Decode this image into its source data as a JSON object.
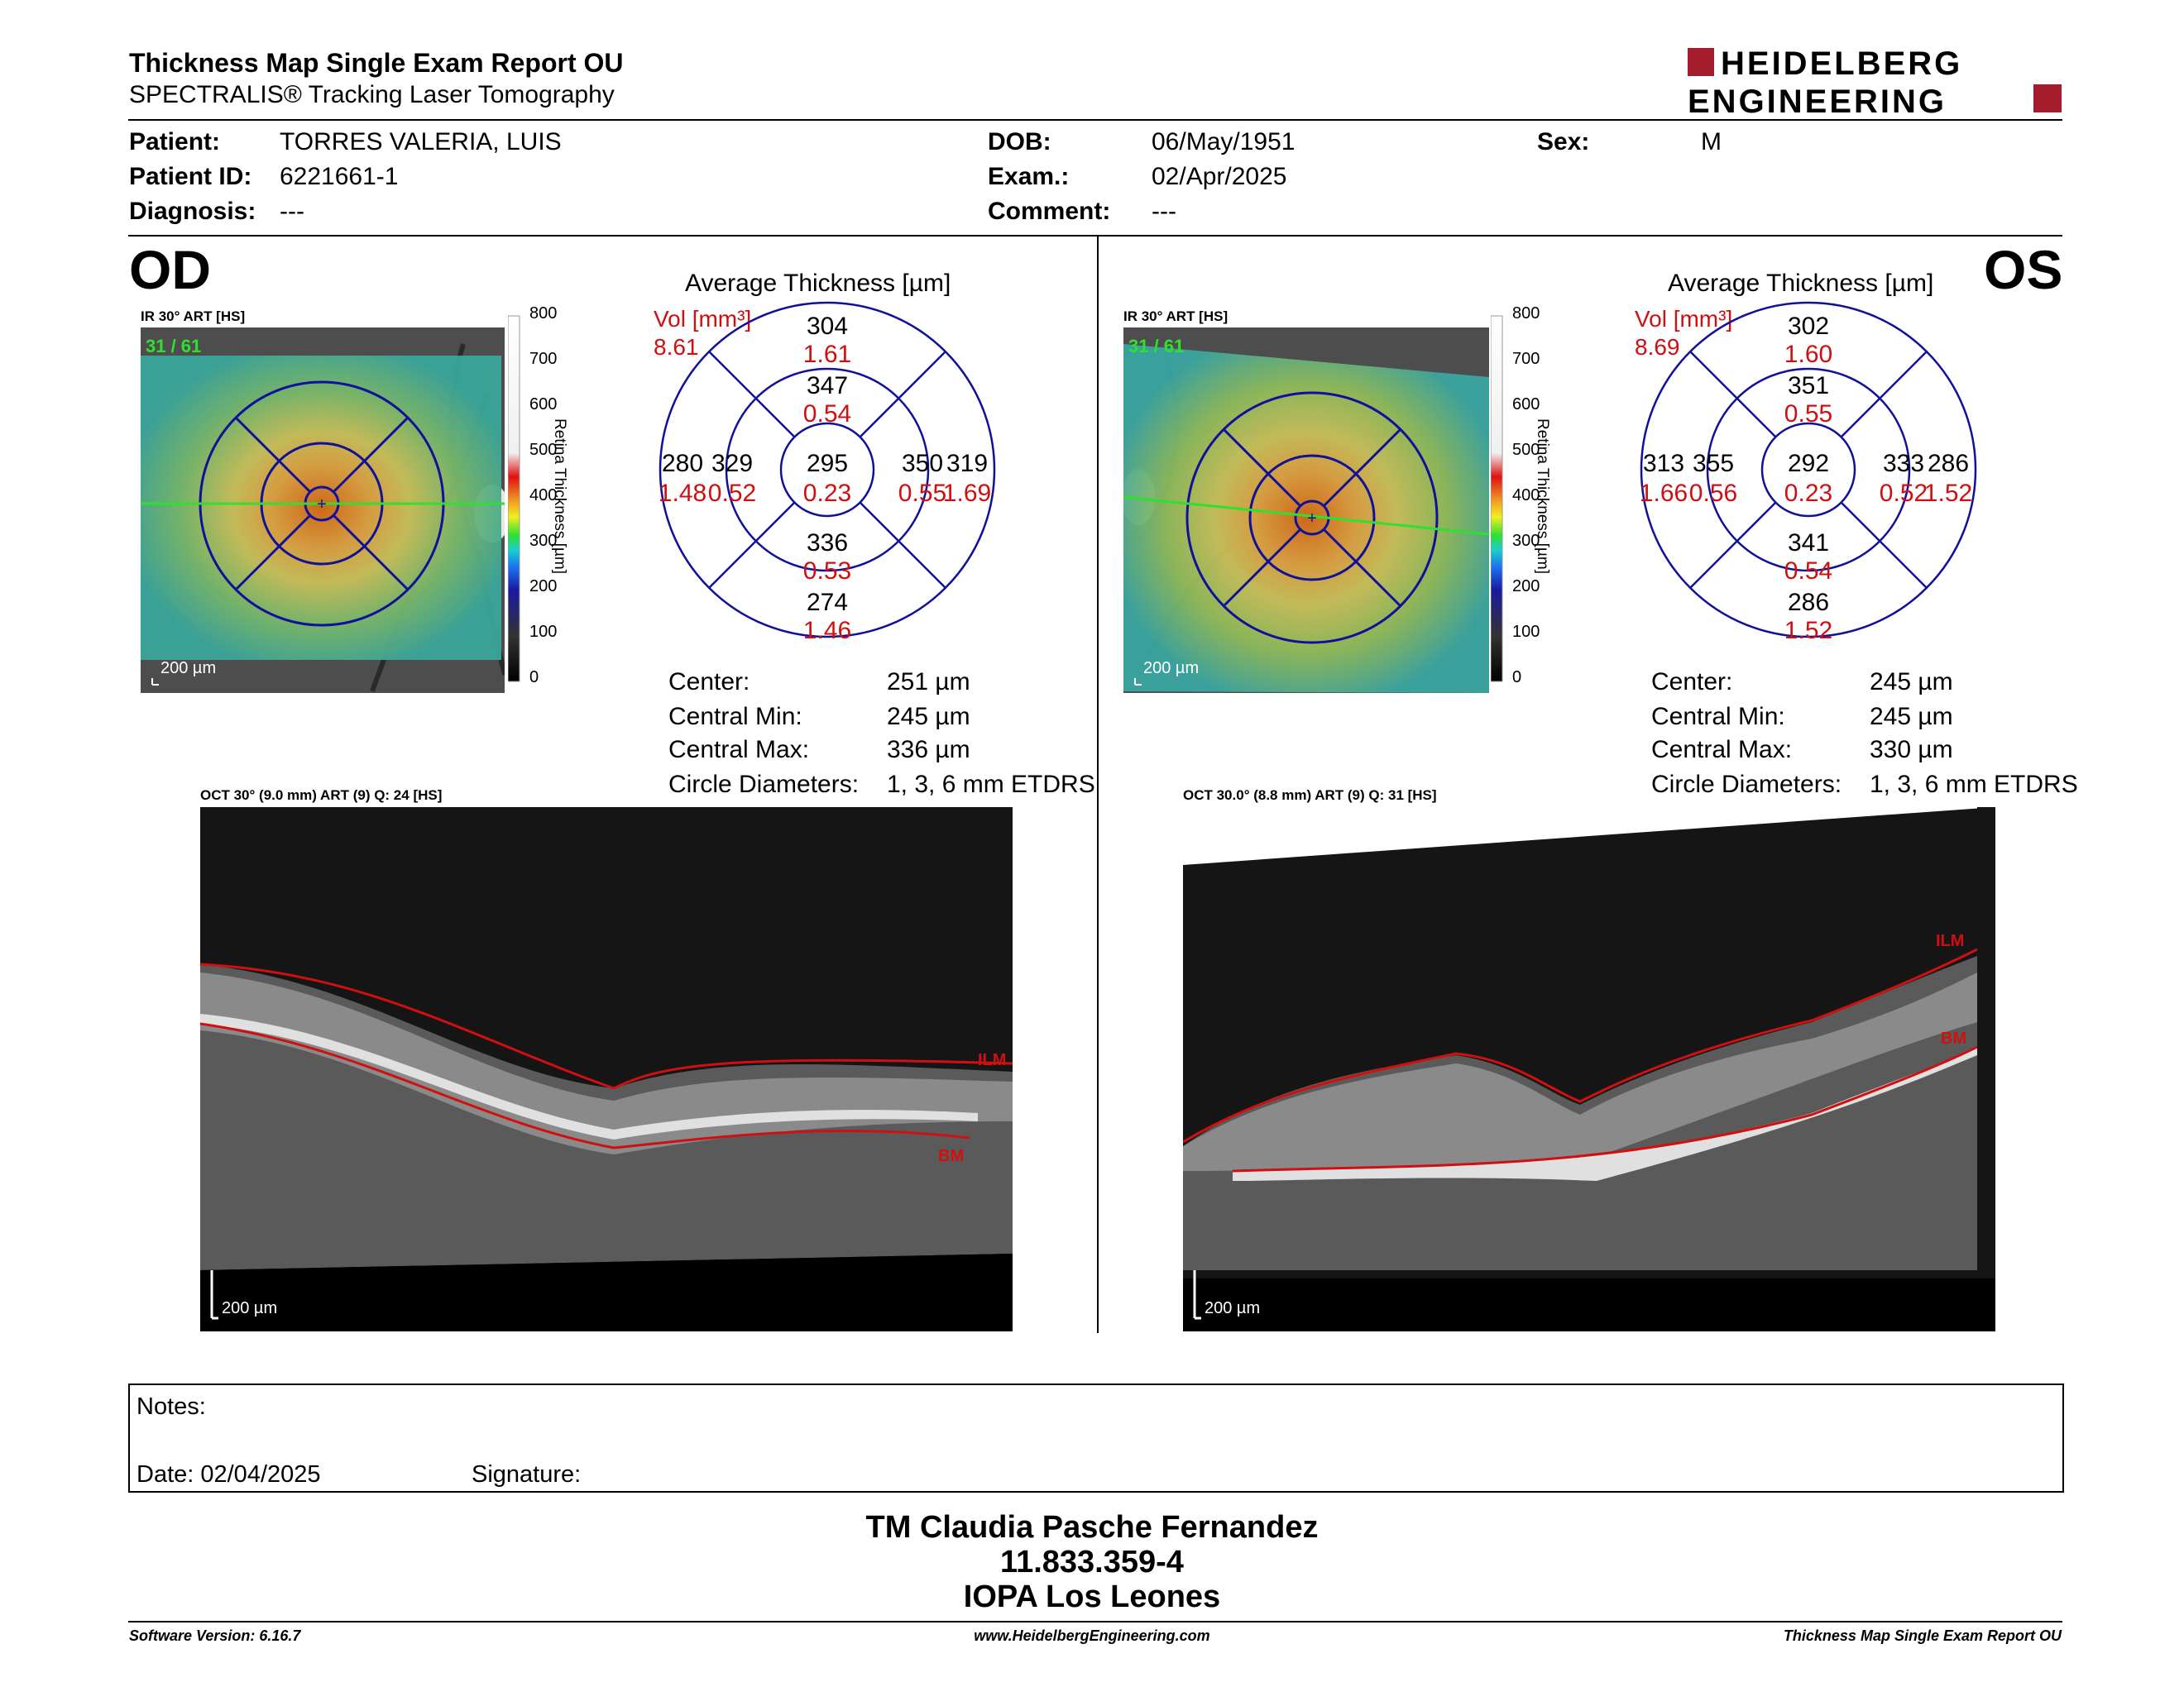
{
  "header": {
    "title": "Thickness Map Single Exam Report OU",
    "subtitle": "SPECTRALIS® Tracking Laser Tomography",
    "logo_line1": "HEIDELBERG",
    "logo_line2": "ENGINEERING",
    "brand_color": "#a51d2d"
  },
  "patient": {
    "patient_label": "Patient:",
    "patient_value": "TORRES VALERIA, LUIS",
    "id_label": "Patient ID:",
    "id_value": "6221661-1",
    "diagnosis_label": "Diagnosis:",
    "diagnosis_value": "---",
    "dob_label": "DOB:",
    "dob_value": "06/May/1951",
    "exam_label": "Exam.:",
    "exam_value": "02/Apr/2025",
    "comment_label": "Comment:",
    "comment_value": "---",
    "sex_label": "Sex:",
    "sex_value": "M"
  },
  "od": {
    "eye_label": "OD",
    "fundus_label": "IR 30° ART [HS]",
    "fundus_counter": "31 / 61",
    "scale_label": "200 µm",
    "colorbar_ticks": [
      "800",
      "700",
      "600",
      "500",
      "400",
      "300",
      "200",
      "100",
      "0"
    ],
    "colorbar_title": "Retina  Thickness [µm]",
    "avg_title": "Average Thickness [µm]",
    "vol_label": "Vol [mm³]",
    "vol_value": "8.61",
    "grid": {
      "center": [
        "295",
        "0.23"
      ],
      "inner_top": [
        "347",
        "0.54"
      ],
      "inner_bottom": [
        "336",
        "0.53"
      ],
      "inner_left": [
        "329",
        "0.52"
      ],
      "inner_right": [
        "350",
        "0.55"
      ],
      "outer_top": [
        "304",
        "1.61"
      ],
      "outer_bottom": [
        "274",
        "1.46"
      ],
      "outer_left": [
        "280",
        "1.48"
      ],
      "outer_right": [
        "319",
        "1.69"
      ]
    },
    "stats": [
      {
        "label": "Center:",
        "value": "251 µm"
      },
      {
        "label": "Central Min:",
        "value": "245 µm"
      },
      {
        "label": "Central Max:",
        "value": "336 µm"
      },
      {
        "label": "Circle Diameters:",
        "value": "1, 3, 6 mm ETDRS"
      }
    ],
    "oct_label": "OCT 30° (9.0 mm) ART (9) Q: 24 [HS]",
    "oct_scale": "200 µm",
    "ilm": "ILM",
    "bm": "BM"
  },
  "os": {
    "eye_label": "OS",
    "fundus_label": "IR 30° ART [HS]",
    "fundus_counter": "31 / 61",
    "scale_label": "200 µm",
    "colorbar_ticks": [
      "800",
      "700",
      "600",
      "500",
      "400",
      "300",
      "200",
      "100",
      "0"
    ],
    "colorbar_title": "Retina  Thickness [µm]",
    "avg_title": "Average Thickness [µm]",
    "vol_label": "Vol [mm³]",
    "vol_value": "8.69",
    "grid": {
      "center": [
        "292",
        "0.23"
      ],
      "inner_top": [
        "351",
        "0.55"
      ],
      "inner_bottom": [
        "341",
        "0.54"
      ],
      "inner_left": [
        "355",
        "0.56"
      ],
      "inner_right": [
        "333",
        "0.52"
      ],
      "outer_top": [
        "302",
        "1.60"
      ],
      "outer_bottom": [
        "286",
        "1.52"
      ],
      "outer_left": [
        "313",
        "1.66"
      ],
      "outer_right": [
        "286",
        "1.52"
      ]
    },
    "stats": [
      {
        "label": "Center:",
        "value": "245 µm"
      },
      {
        "label": "Central Min:",
        "value": "245 µm"
      },
      {
        "label": "Central Max:",
        "value": "330 µm"
      },
      {
        "label": "Circle Diameters:",
        "value": "1, 3, 6 mm ETDRS"
      }
    ],
    "oct_label": "OCT 30.0° (8.8 mm) ART (9) Q: 31 [HS]",
    "oct_scale": "200 µm",
    "ilm": "ILM",
    "bm": "BM"
  },
  "notes": {
    "notes_label": "Notes:",
    "date_label": "Date: 02/04/2025",
    "signature_label": "Signature:"
  },
  "signature": {
    "name": "TM Claudia Pasche Fernandez",
    "id": "11.833.359-4",
    "place": "IOPA Los Leones"
  },
  "footer": {
    "software": "Software Version: 6.16.7",
    "website": "www.HeidelbergEngineering.com",
    "report": "Thickness Map Single Exam Report OU"
  },
  "colors": {
    "red": "#d01010",
    "navy": "#10109a",
    "green": "#2fe02f"
  }
}
